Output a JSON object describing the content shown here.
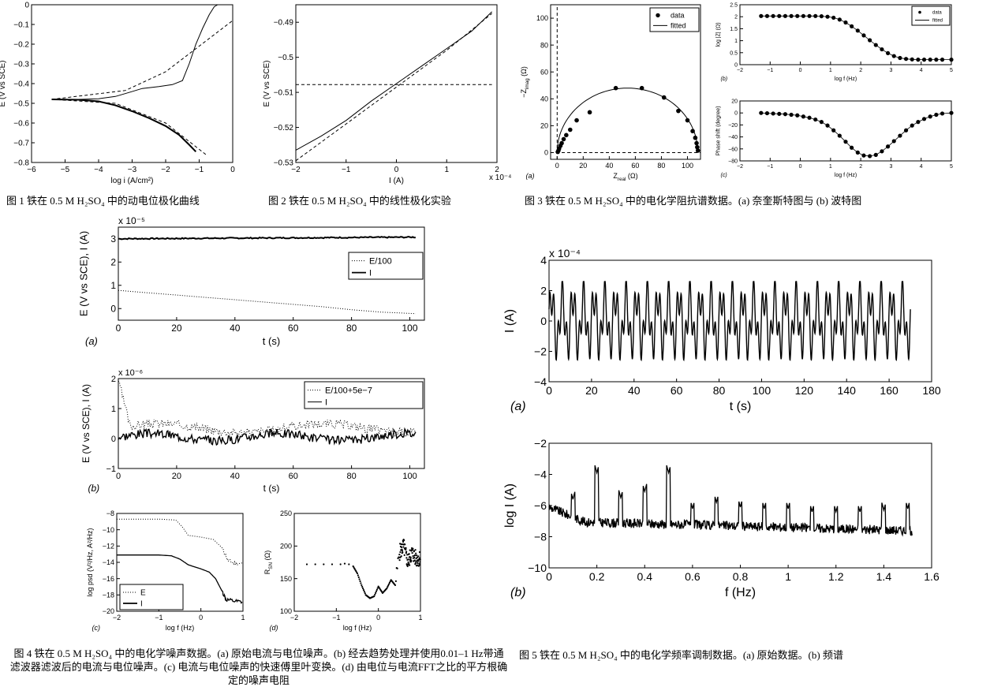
{
  "captions": {
    "fig1": "图 1 铁在 0.5 M H₂SO₄ 中的动电位极化曲线",
    "fig2": "图 2 铁在 0.5 M H₂SO₄ 中的线性极化实验",
    "fig3": "图 3 铁在 0.5 M H₂SO₄ 中的电化学阻抗谱数据。(a) 奈奎斯特图与 (b) 波特图",
    "fig4": "图 4 铁在 0.5 M H₂SO₄ 中的电化学噪声数据。(a) 原始电流与电位噪声。(b) 经去趋势处理并使用0.01–1 Hz带通滤波器滤波后的电流与电位噪声。(c) 电流与电位噪声的快速傅里叶变换。(d) 由电位与电流FFT之比的平方根确定的噪声电阻",
    "fig5": "图 5  铁在 0.5 M H₂SO₄ 中的电化学频率调制数据。(a) 原始数据。(b) 频谱"
  },
  "chart_data": [
    {
      "id": "f1",
      "type": "line",
      "xlabel": "log i (A/cm²)",
      "ylabel": "E (V vs SCE)",
      "xlim": [
        -6,
        0
      ],
      "ylim": [
        -0.8,
        0
      ],
      "xticks": [
        "−6",
        "−5",
        "−4",
        "−3",
        "−2",
        "−1",
        "0"
      ],
      "yticks": [
        "0",
        "−0.1",
        "−0.2",
        "−0.3",
        "−0.4",
        "−0.5",
        "−0.6",
        "−0.7",
        "−0.8"
      ],
      "series": [
        {
          "style": "solid",
          "x": [
            -5.4,
            -4.6,
            -4,
            -3.5,
            -3.1,
            -2.7,
            -2.2,
            -1.8,
            -1.5,
            -1.3,
            -1.1,
            -0.9,
            -0.7,
            -0.55,
            -0.45
          ],
          "y": [
            -0.48,
            -0.48,
            -0.477,
            -0.465,
            -0.445,
            -0.425,
            -0.415,
            -0.405,
            -0.385,
            -0.3,
            -0.2,
            -0.12,
            -0.05,
            -0.01,
            0
          ]
        },
        {
          "style": "solid",
          "x": [
            -5.4,
            -4.6,
            -4,
            -3.5,
            -3,
            -2.5,
            -2,
            -1.6,
            -1.3,
            -1.1
          ],
          "y": [
            -0.48,
            -0.482,
            -0.49,
            -0.51,
            -0.54,
            -0.575,
            -0.615,
            -0.66,
            -0.71,
            -0.745
          ]
        },
        {
          "style": "dashed",
          "x": [
            -5.4,
            -3.2,
            -2,
            -1,
            0
          ],
          "y": [
            -0.48,
            -0.435,
            -0.34,
            -0.21,
            -0.08
          ]
        },
        {
          "style": "dashed",
          "x": [
            -5.4,
            -3.5,
            -2,
            -0.8
          ],
          "y": [
            -0.48,
            -0.5,
            -0.6,
            -0.76
          ]
        }
      ]
    },
    {
      "id": "f2",
      "type": "line",
      "xlabel": "I (A)",
      "ylabel": "E (V vs SCE)",
      "xlim": [
        -2,
        2
      ],
      "ylim": [
        -0.53,
        -0.485
      ],
      "exponent": "x 10⁻⁴",
      "xticks": [
        "−2",
        "−1",
        "0",
        "1",
        "2"
      ],
      "yticks": [
        "−0.49",
        "−0.5",
        "−0.51",
        "−0.52",
        "−0.53"
      ],
      "series": [
        {
          "style": "solid",
          "x": [
            -2,
            -1.5,
            -1,
            -0.5,
            0,
            0.5,
            1,
            1.5,
            1.9
          ],
          "y": [
            -0.5265,
            -0.5225,
            -0.518,
            -0.5125,
            -0.5075,
            -0.5025,
            -0.4975,
            -0.4925,
            -0.487
          ]
        },
        {
          "style": "dashed",
          "x": [
            -2,
            -1,
            0,
            1,
            1.9
          ],
          "y": [
            -0.5295,
            -0.519,
            -0.5085,
            -0.498,
            -0.4875
          ]
        },
        {
          "style": "dashed",
          "x": [
            -2,
            1.9
          ],
          "y": [
            -0.5078,
            -0.5078
          ]
        }
      ]
    },
    {
      "id": "f3a",
      "type": "scatter",
      "xlabel": "Z",
      "xlabel_sub": "real",
      "xlabel_unit": "(Ω)",
      "ylabel": "−Z",
      "ylabel_sub": "imag",
      "ylabel_unit": "(Ω)",
      "panel_label": "(a)",
      "xlim": [
        -5,
        110
      ],
      "ylim": [
        -5,
        110
      ],
      "xticks": [
        "0",
        "20",
        "40",
        "60",
        "80",
        "100"
      ],
      "yticks": [
        "0",
        "20",
        "40",
        "60",
        "80",
        "100"
      ],
      "legend": [
        "data",
        "fitted"
      ],
      "points": {
        "x": [
          0.5,
          1,
          1.5,
          2.5,
          3.5,
          5,
          7,
          10,
          15,
          25,
          45,
          65,
          82,
          93,
          100,
          104,
          106,
          107,
          107.5,
          108
        ],
        "y": [
          0.5,
          1.5,
          3,
          5,
          7,
          10,
          13,
          17,
          24,
          30,
          48,
          48,
          41,
          31,
          24,
          16,
          11,
          7,
          4,
          1.5
        ]
      }
    },
    {
      "id": "f3b",
      "type": "scatter",
      "ylabel": "log |Z| (Ω)",
      "xlabel": "log f (Hz)",
      "panel_label": "(b)",
      "xlim": [
        -2,
        5
      ],
      "ylim": [
        0,
        2.5
      ],
      "xticks": [
        "−2",
        "−1",
        "0",
        "1",
        "2",
        "3",
        "4",
        "5"
      ],
      "yticks": [
        "0",
        "0.5",
        "1",
        "1.5",
        "2",
        "2.5"
      ],
      "legend": [
        "data",
        "fitted"
      ],
      "points": {
        "x": [
          -1.3,
          -1.1,
          -0.9,
          -0.7,
          -0.5,
          -0.3,
          -0.1,
          0.1,
          0.3,
          0.5,
          0.7,
          0.9,
          1.1,
          1.3,
          1.5,
          1.7,
          1.9,
          2.1,
          2.3,
          2.5,
          2.7,
          2.9,
          3.1,
          3.3,
          3.5,
          3.7,
          3.9,
          4.1,
          4.3,
          4.5,
          4.7,
          5
        ],
        "y": [
          2.03,
          2.03,
          2.03,
          2.03,
          2.03,
          2.03,
          2.03,
          2.03,
          2.03,
          2.03,
          2.02,
          2.0,
          1.96,
          1.88,
          1.76,
          1.6,
          1.42,
          1.22,
          1.02,
          0.82,
          0.64,
          0.48,
          0.36,
          0.28,
          0.24,
          0.22,
          0.21,
          0.21,
          0.21,
          0.21,
          0.21,
          0.21
        ]
      }
    },
    {
      "id": "f3c",
      "type": "scatter",
      "ylabel": "Phase shift (degree)",
      "xlabel": "log f (Hz)",
      "panel_label": "(c)",
      "xlim": [
        -2,
        5
      ],
      "ylim": [
        -80,
        20
      ],
      "xticks": [
        "−2",
        "−1",
        "0",
        "1",
        "2",
        "3",
        "4",
        "5"
      ],
      "yticks": [
        "20",
        "0",
        "−20",
        "−40",
        "−60",
        "−80"
      ],
      "points": {
        "x": [
          -1.3,
          -1.1,
          -0.9,
          -0.7,
          -0.5,
          -0.3,
          -0.1,
          0.1,
          0.3,
          0.5,
          0.7,
          0.9,
          1.1,
          1.3,
          1.5,
          1.7,
          1.9,
          2.1,
          2.3,
          2.5,
          2.7,
          2.9,
          3.1,
          3.3,
          3.5,
          3.7,
          3.9,
          4.1,
          4.3,
          4.5,
          4.7,
          5
        ],
        "y": [
          0,
          -0.5,
          -1,
          -1.5,
          -2,
          -3,
          -4,
          -6,
          -8,
          -11,
          -15,
          -21,
          -29,
          -38,
          -48,
          -58,
          -66,
          -71,
          -72,
          -70,
          -64,
          -56,
          -47,
          -38,
          -29,
          -21,
          -15,
          -10,
          -6,
          -3,
          -1,
          0
        ]
      }
    },
    {
      "id": "f4a",
      "type": "line",
      "xlabel": "t (s)",
      "ylabel": "E (V vs SCE), I (A)",
      "panel_label": "(a)",
      "xlim": [
        0,
        105
      ],
      "ylim": [
        -0.5,
        3.5
      ],
      "exponent": "x 10⁻⁵",
      "xticks": [
        "0",
        "20",
        "40",
        "60",
        "80",
        "100"
      ],
      "yticks": [
        "0",
        "1",
        "2",
        "3"
      ],
      "legend": [
        "E/100",
        "I"
      ],
      "series": [
        {
          "name": "E/100",
          "style": "dotted",
          "x": [
            0,
            10,
            20,
            30,
            40,
            50,
            60,
            70,
            80,
            90,
            102
          ],
          "y": [
            0.78,
            0.68,
            0.58,
            0.48,
            0.38,
            0.28,
            0.18,
            0.08,
            -0.05,
            -0.15,
            -0.22
          ]
        },
        {
          "name": "I",
          "style": "solid",
          "x": [
            0,
            102
          ],
          "y": [
            3.0,
            3.07
          ]
        }
      ]
    },
    {
      "id": "f4b",
      "type": "line",
      "xlabel": "t (s)",
      "ylabel": "E (V vs SCE), I (A)",
      "panel_label": "(b)",
      "xlim": [
        0,
        105
      ],
      "ylim": [
        -1,
        2
      ],
      "exponent": "x 10⁻⁶",
      "xticks": [
        "0",
        "20",
        "40",
        "60",
        "80",
        "100"
      ],
      "yticks": [
        "−1",
        "0",
        "1",
        "2"
      ],
      "legend": [
        "E/100+5e−7",
        "I"
      ]
    },
    {
      "id": "f4c",
      "type": "line",
      "xlabel": "log f (Hz)",
      "ylabel": "log psd (V²/Hz, A²/Hz)",
      "panel_label": "(c)",
      "xlim": [
        -2,
        1
      ],
      "ylim": [
        -20,
        -8
      ],
      "xticks": [
        "−2",
        "−1",
        "0",
        "1"
      ],
      "yticks": [
        "−8",
        "−10",
        "−12",
        "−14",
        "−16",
        "−18",
        "−20"
      ],
      "legend": [
        "E",
        "I"
      ],
      "series": [
        {
          "name": "E",
          "style": "dotted",
          "x": [
            -2,
            -1,
            -0.6,
            -0.45,
            -0.3,
            0,
            0.3,
            0.5,
            0.65,
            0.8,
            1
          ],
          "y": [
            -8.7,
            -8.7,
            -8.8,
            -9.6,
            -10.7,
            -10.9,
            -11.2,
            -12.2,
            -13.8,
            -14.1,
            -14.2
          ]
        },
        {
          "name": "I",
          "style": "solid",
          "x": [
            -2,
            -1,
            -0.7,
            -0.5,
            -0.3,
            0,
            0.2,
            0.35,
            0.5,
            0.6,
            0.8,
            1
          ],
          "y": [
            -13.1,
            -13.1,
            -13.2,
            -13.6,
            -14.3,
            -14.8,
            -15.2,
            -16,
            -17.5,
            -18.6,
            -18.8,
            -18.9
          ]
        }
      ]
    },
    {
      "id": "f4d",
      "type": "scatter",
      "xlabel": "log f (Hz)",
      "ylabel": "R",
      "ylabel_sub": "SN",
      "ylabel_unit": "(Ω)",
      "panel_label": "(d)",
      "xlim": [
        -2,
        1
      ],
      "ylim": [
        100,
        250
      ],
      "xticks": [
        "−2",
        "−1",
        "0",
        "1"
      ],
      "yticks": [
        "100",
        "150",
        "200",
        "250"
      ],
      "points": {
        "x": [
          -1.7,
          -1.5,
          -1.3,
          -1.1,
          -0.9,
          -0.8,
          -0.7,
          -0.6,
          -0.5,
          -0.4,
          -0.3,
          -0.2,
          -0.1,
          0,
          0.1,
          0.2,
          0.3,
          0.4,
          0.5,
          0.6,
          0.7,
          0.8,
          0.9,
          1
        ],
        "y": [
          172,
          172,
          172,
          172,
          172,
          173,
          172,
          169,
          158,
          140,
          125,
          120,
          123,
          138,
          128,
          135,
          148,
          140,
          190,
          200,
          175,
          190,
          180,
          182
        ]
      }
    },
    {
      "id": "f5a",
      "type": "line",
      "xlabel": "t (s)",
      "ylabel": "I (A)",
      "panel_label": "(a)",
      "xlim": [
        0,
        180
      ],
      "ylim": [
        -4,
        4
      ],
      "exponent": "x 10⁻⁴",
      "xticks": [
        "0",
        "20",
        "40",
        "60",
        "80",
        "100",
        "120",
        "140",
        "160",
        "180"
      ],
      "yticks": [
        "4",
        "2",
        "0",
        "−2",
        "−4"
      ]
    },
    {
      "id": "f5b",
      "type": "line",
      "xlabel": "f (Hz)",
      "ylabel": "log I (A)",
      "panel_label": "(b)",
      "xlim": [
        0,
        1.6
      ],
      "ylim": [
        -10,
        -2
      ],
      "xticks": [
        "0",
        "0.2",
        "0.4",
        "0.6",
        "0.8",
        "1",
        "1.2",
        "1.4",
        "1.6"
      ],
      "yticks": [
        "−2",
        "−4",
        "−6",
        "−8",
        "−10"
      ],
      "peaks": {
        "x": [
          0.1,
          0.2,
          0.3,
          0.4,
          0.5,
          0.6,
          0.7,
          0.8,
          0.9,
          1.0,
          1.1,
          1.2,
          1.3,
          1.4,
          1.5
        ],
        "y": [
          -5.6,
          -3.9,
          -5.5,
          -5.1,
          -3.9,
          -6.2,
          -5.8,
          -6.1,
          -6.2,
          -6.2,
          -6.4,
          -6.4,
          -6.4,
          -6.3,
          -6.2
        ]
      }
    }
  ]
}
